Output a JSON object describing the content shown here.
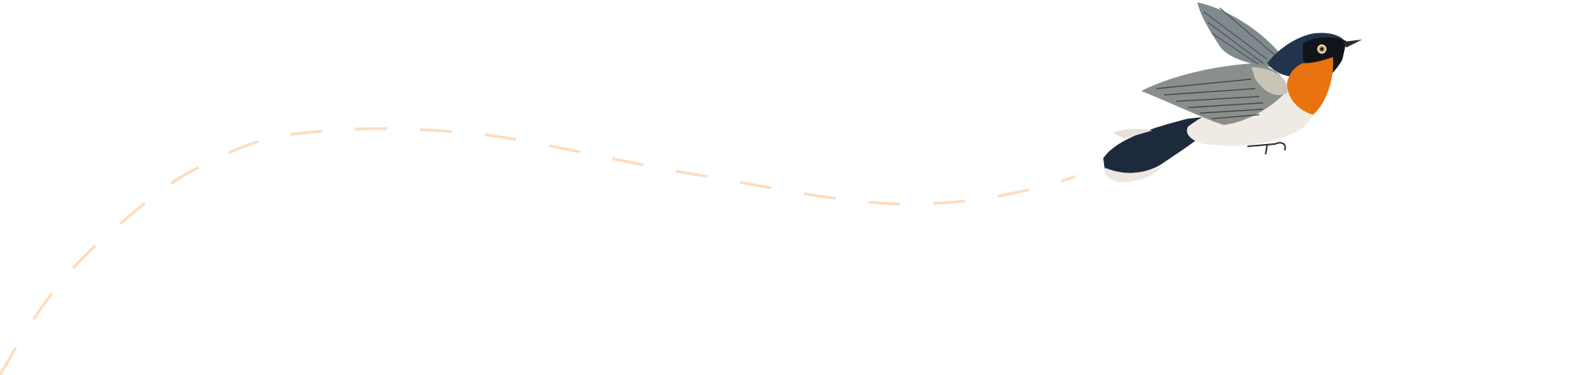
{
  "colors": {
    "background": "#ffffff",
    "flight_path": "#fddcbf",
    "bird_orange": "#e8730f",
    "bird_blue_black": "#1c2a3c",
    "bird_grey_wing": "#8a8f8c",
    "bird_white": "#efebe4"
  },
  "illustration": {
    "subject": "bird-icon",
    "path_style": "dashed"
  }
}
